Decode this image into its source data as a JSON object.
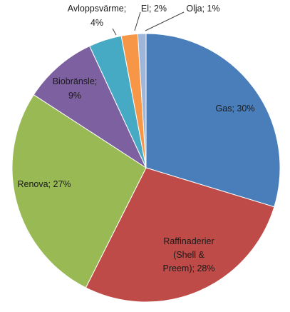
{
  "chart_data": {
    "type": "pie",
    "title": "",
    "slices": [
      {
        "label": "Gas; 30%",
        "name": "Gas",
        "value": 30,
        "color": "#4a7ebb"
      },
      {
        "label": "Raffinaderier (Shell & Preem); 28%",
        "name": "Raffinaderier (Shell & Preem)",
        "value": 28,
        "color": "#be4b48"
      },
      {
        "label": "Renova; 27%",
        "name": "Renova",
        "value": 27,
        "color": "#98b954"
      },
      {
        "label": "Biobränsle; 9%",
        "name": "Biobränsle",
        "value": 9,
        "color": "#7d60a0"
      },
      {
        "label": "Avloppsvärme; 4%",
        "name": "Avloppsvärme",
        "value": 4,
        "color": "#46aac5"
      },
      {
        "label": "El; 2%",
        "name": "El",
        "value": 2,
        "color": "#f79646"
      },
      {
        "label": "Olja; 1%",
        "name": "Olja",
        "value": 1,
        "color": "#9eb6d9"
      }
    ],
    "legend": "none"
  }
}
